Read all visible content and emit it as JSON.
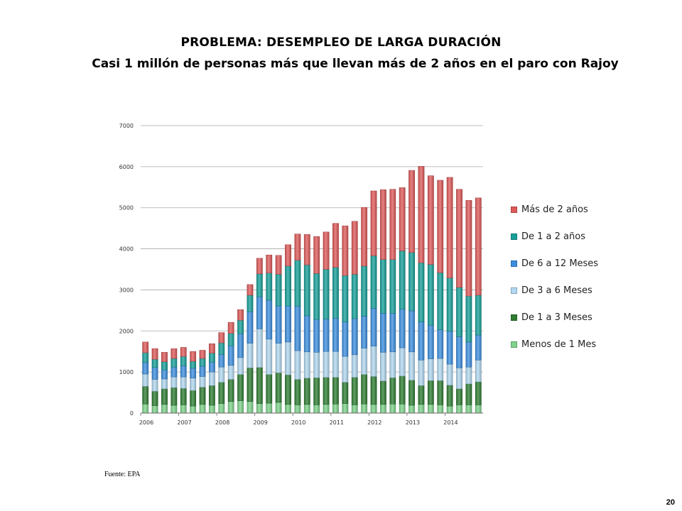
{
  "slide": {
    "title": "PROBLEMA: DESEMPLEO DE LARGA DURACIÓN",
    "subtitle": "Casi 1 millón de personas más que llevan más de 2 años en el paro con Rajoy",
    "source": "Fuente: EPA",
    "page_number": "20"
  },
  "chart_data": {
    "type": "bar",
    "stacked": true,
    "title": "",
    "xlabel": "",
    "ylabel": "",
    "ylim": [
      0,
      7000
    ],
    "yticks": [
      0,
      1000,
      2000,
      3000,
      4000,
      5000,
      6000,
      7000
    ],
    "year_labels": [
      "2006",
      "2007",
      "2008",
      "2009",
      "2010",
      "2011",
      "2012",
      "2013",
      "2014"
    ],
    "categories": [
      "2006T1",
      "2006T2",
      "2006T3",
      "2006T4",
      "2007T1",
      "2007T2",
      "2007T3",
      "2007T4",
      "2008T1",
      "2008T2",
      "2008T3",
      "2008T4",
      "2009T1",
      "2009T2",
      "2009T3",
      "2009T4",
      "2010T1",
      "2010T2",
      "2010T3",
      "2010T4",
      "2011T1",
      "2011T2",
      "2011T3",
      "2011T4",
      "2012T1",
      "2012T2",
      "2012T3",
      "2012T4",
      "2013T1",
      "2013T2",
      "2013T3",
      "2013T4",
      "2014T1",
      "2014T2",
      "2014T3",
      "2014T4"
    ],
    "grid": true,
    "legend_position": "right",
    "series": [
      {
        "name": "Menos de 1 Mes",
        "color": "#7fd48c",
        "values": [
          220,
          180,
          210,
          190,
          200,
          170,
          210,
          190,
          230,
          280,
          300,
          280,
          230,
          240,
          260,
          210,
          200,
          210,
          200,
          210,
          220,
          230,
          200,
          220,
          210,
          210,
          220,
          220,
          190,
          210,
          210,
          200,
          170,
          200,
          200,
          200
        ]
      },
      {
        "name": "De 1 a 3 Meses",
        "color": "#2e7d32",
        "values": [
          430,
          350,
          380,
          430,
          400,
          380,
          420,
          480,
          520,
          540,
          640,
          820,
          880,
          700,
          720,
          720,
          620,
          640,
          660,
          660,
          650,
          520,
          670,
          720,
          680,
          570,
          640,
          680,
          610,
          460,
          580,
          590,
          510,
          390,
          510,
          560
        ]
      },
      {
        "name": "De 3 a 6 Meses",
        "color": "#b3d9f2",
        "values": [
          300,
          290,
          240,
          260,
          280,
          300,
          260,
          330,
          370,
          340,
          410,
          600,
          940,
          860,
          720,
          800,
          700,
          640,
          620,
          630,
          630,
          630,
          550,
          640,
          740,
          700,
          630,
          690,
          690,
          620,
          530,
          540,
          510,
          510,
          410,
          530
        ]
      },
      {
        "name": "De 6 a 12 Meses",
        "color": "#3c8fe0",
        "values": [
          280,
          290,
          220,
          240,
          270,
          240,
          250,
          240,
          310,
          480,
          580,
          770,
          780,
          950,
          910,
          880,
          1080,
          880,
          800,
          790,
          810,
          840,
          880,
          780,
          920,
          950,
          940,
          940,
          1000,
          930,
          820,
          700,
          800,
          760,
          610,
          610
        ]
      },
      {
        "name": "De 1 a 2 años",
        "color": "#17a09a",
        "values": [
          240,
          200,
          200,
          210,
          230,
          170,
          190,
          220,
          280,
          300,
          330,
          400,
          560,
          660,
          770,
          970,
          1120,
          1240,
          1120,
          1210,
          1240,
          1130,
          1080,
          1220,
          1280,
          1310,
          1310,
          1420,
          1420,
          1440,
          1480,
          1390,
          1300,
          1200,
          1120,
          970
        ]
      },
      {
        "name": "Más de 2 años",
        "color": "#e05a5a",
        "values": [
          260,
          260,
          230,
          240,
          220,
          240,
          200,
          230,
          250,
          270,
          260,
          260,
          380,
          440,
          460,
          520,
          640,
          740,
          900,
          910,
          1070,
          1210,
          1290,
          1430,
          1580,
          1700,
          1710,
          1540,
          2000,
          2350,
          2160,
          2250,
          2450,
          2390,
          2330,
          2370
        ]
      }
    ]
  }
}
